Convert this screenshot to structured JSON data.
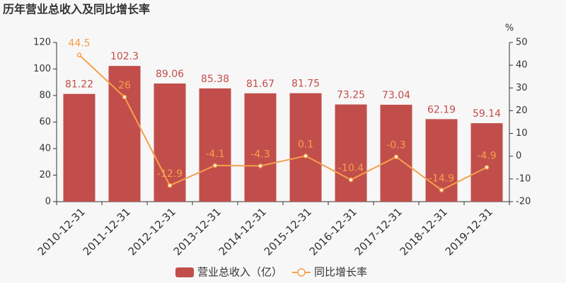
{
  "chart_data": {
    "type": "bar",
    "title": "历年营业总收入及同比增长率",
    "categories": [
      "2010-12-31",
      "2011-12-31",
      "2012-12-31",
      "2013-12-31",
      "2014-12-31",
      "2015-12-31",
      "2016-12-31",
      "2017-12-31",
      "2018-12-31",
      "2019-12-31"
    ],
    "series": [
      {
        "name": "营业总收入（亿）",
        "type": "bar",
        "color": "#c14e4b",
        "values": [
          81.22,
          102.3,
          89.06,
          85.38,
          81.67,
          81.75,
          73.25,
          73.04,
          62.19,
          59.14
        ]
      },
      {
        "name": "同比增长率",
        "type": "line",
        "axis": "y2",
        "color": "#f5a04b",
        "values": [
          44.5,
          26,
          -12.9,
          -4.1,
          -4.3,
          0.1,
          -10.4,
          -0.3,
          -14.9,
          -4.9
        ]
      }
    ],
    "ylim": [
      0,
      120
    ],
    "yticks": [
      0,
      20,
      40,
      60,
      80,
      100,
      120
    ],
    "y2lim": [
      -20,
      50
    ],
    "y2ticks": [
      -20,
      -10,
      0,
      10,
      20,
      30,
      40,
      50
    ],
    "y2label": "%",
    "grid": false,
    "legend": "bottom"
  }
}
